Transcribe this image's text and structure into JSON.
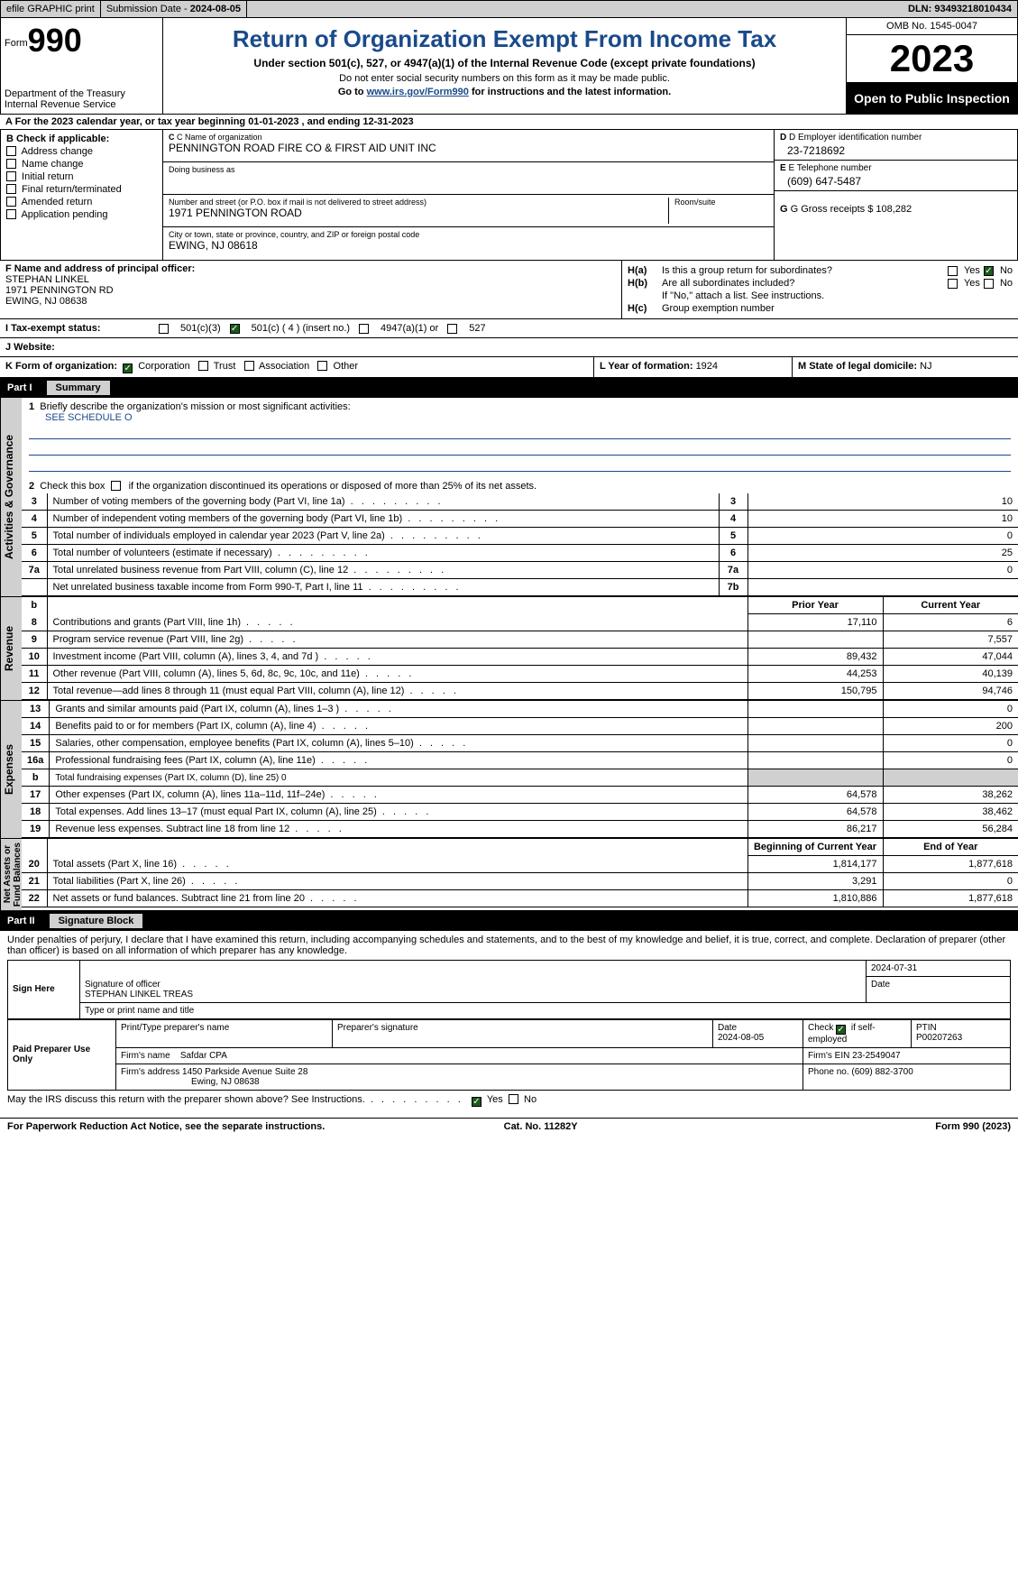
{
  "top": {
    "efile": "efile GRAPHIC print",
    "sub_label": "Submission Date - ",
    "sub_date": "2024-08-05",
    "dln_label": "DLN: ",
    "dln": "93493218010434"
  },
  "header": {
    "form_label": "Form",
    "form_num": "990",
    "dept": "Department of the Treasury\nInternal Revenue Service",
    "title": "Return of Organization Exempt From Income Tax",
    "sub": "Under section 501(c), 527, or 4947(a)(1) of the Internal Revenue Code (except private foundations)",
    "note1": "Do not enter social security numbers on this form as it may be made public.",
    "note2_a": "Go to ",
    "note2_link": "www.irs.gov/Form990",
    "note2_b": " for instructions and the latest information.",
    "omb": "OMB No. 1545-0047",
    "year": "2023",
    "open": "Open to Public Inspection"
  },
  "line_a": "A For the 2023 calendar year, or tax year beginning 01-01-2023   , and ending 12-31-2023",
  "col_b": {
    "hdr": "B Check if applicable:",
    "opts": [
      "Address change",
      "Name change",
      "Initial return",
      "Final return/terminated",
      "Amended return",
      "Application pending"
    ]
  },
  "col_c": {
    "name_lbl": "C Name of organization",
    "name": "PENNINGTON ROAD FIRE CO & FIRST AID UNIT INC",
    "dba_lbl": "Doing business as",
    "street_lbl": "Number and street (or P.O. box if mail is not delivered to street address)",
    "street": "1971 PENNINGTON ROAD",
    "room_lbl": "Room/suite",
    "city_lbl": "City or town, state or province, country, and ZIP or foreign postal code",
    "city": "EWING, NJ  08618"
  },
  "col_de": {
    "d_lbl": "D Employer identification number",
    "d_val": "23-7218692",
    "e_lbl": "E Telephone number",
    "e_val": "(609) 647-5487",
    "g_lbl": "G Gross receipts $ ",
    "g_val": "108,282"
  },
  "f": {
    "lbl": "F  Name and address of principal officer:",
    "name": "STEPHAN LINKEL",
    "addr1": "1971 PENNINGTON RD",
    "addr2": "EWING, NJ  08638"
  },
  "h": {
    "a": "H(a)  Is this a group return for subordinates?",
    "b": "H(b)  Are all subordinates included?",
    "b2": "If \"No,\" attach a list. See instructions.",
    "c": "H(c)  Group exemption number ",
    "yes": "Yes",
    "no": "No"
  },
  "i": {
    "lbl": "I   Tax-exempt status:",
    "o1": "501(c)(3)",
    "o2": "501(c) ( 4 ) (insert no.)",
    "o3": "4947(a)(1) or",
    "o4": "527"
  },
  "j": {
    "lbl": "J   Website: "
  },
  "k": {
    "lbl": "K Form of organization:",
    "o1": "Corporation",
    "o2": "Trust",
    "o3": "Association",
    "o4": "Other",
    "l": "L Year of formation: ",
    "l_val": "1924",
    "m": "M State of legal domicile: ",
    "m_val": "NJ"
  },
  "part1": {
    "n": "Part I",
    "t": "Summary"
  },
  "p1": {
    "l1": "Briefly describe the organization's mission or most significant activities:",
    "l1_val": "SEE SCHEDULE O",
    "l2": "Check this box      if the organization discontinued its operations or disposed of more than 25% of its net assets.",
    "rows_single": [
      {
        "n": "3",
        "d": "Number of voting members of the governing body (Part VI, line 1a)",
        "ln": "3",
        "v": "10"
      },
      {
        "n": "4",
        "d": "Number of independent voting members of the governing body (Part VI, line 1b)",
        "ln": "4",
        "v": "10"
      },
      {
        "n": "5",
        "d": "Total number of individuals employed in calendar year 2023 (Part V, line 2a)",
        "ln": "5",
        "v": "0"
      },
      {
        "n": "6",
        "d": "Total number of volunteers (estimate if necessary)",
        "ln": "6",
        "v": "25"
      },
      {
        "n": "7a",
        "d": "Total unrelated business revenue from Part VIII, column (C), line 12",
        "ln": "7a",
        "v": "0"
      },
      {
        "n": "",
        "d": "Net unrelated business taxable income from Form 990-T, Part I, line 11",
        "ln": "7b",
        "v": ""
      }
    ],
    "hdr_prior": "Prior Year",
    "hdr_curr": "Current Year",
    "rev": [
      {
        "n": "8",
        "d": "Contributions and grants (Part VIII, line 1h)",
        "p": "17,110",
        "c": "6"
      },
      {
        "n": "9",
        "d": "Program service revenue (Part VIII, line 2g)",
        "p": "",
        "c": "7,557"
      },
      {
        "n": "10",
        "d": "Investment income (Part VIII, column (A), lines 3, 4, and 7d )",
        "p": "89,432",
        "c": "47,044"
      },
      {
        "n": "11",
        "d": "Other revenue (Part VIII, column (A), lines 5, 6d, 8c, 9c, 10c, and 11e)",
        "p": "44,253",
        "c": "40,139"
      },
      {
        "n": "12",
        "d": "Total revenue—add lines 8 through 11 (must equal Part VIII, column (A), line 12)",
        "p": "150,795",
        "c": "94,746"
      }
    ],
    "exp": [
      {
        "n": "13",
        "d": "Grants and similar amounts paid (Part IX, column (A), lines 1–3 )",
        "p": "",
        "c": "0"
      },
      {
        "n": "14",
        "d": "Benefits paid to or for members (Part IX, column (A), line 4)",
        "p": "",
        "c": "200"
      },
      {
        "n": "15",
        "d": "Salaries, other compensation, employee benefits (Part IX, column (A), lines 5–10)",
        "p": "",
        "c": "0"
      },
      {
        "n": "16a",
        "d": "Professional fundraising fees (Part IX, column (A), line 11e)",
        "p": "",
        "c": "0"
      },
      {
        "n": "b",
        "d": "Total fundraising expenses (Part IX, column (D), line 25) 0",
        "p": "shade",
        "c": "shade",
        "small": true
      },
      {
        "n": "17",
        "d": "Other expenses (Part IX, column (A), lines 11a–11d, 11f–24e)",
        "p": "64,578",
        "c": "38,262"
      },
      {
        "n": "18",
        "d": "Total expenses. Add lines 13–17 (must equal Part IX, column (A), line 25)",
        "p": "64,578",
        "c": "38,462"
      },
      {
        "n": "19",
        "d": "Revenue less expenses. Subtract line 18 from line 12",
        "p": "86,217",
        "c": "56,284"
      }
    ],
    "na_hdr_b": "Beginning of Current Year",
    "na_hdr_e": "End of Year",
    "na": [
      {
        "n": "20",
        "d": "Total assets (Part X, line 16)",
        "p": "1,814,177",
        "c": "1,877,618"
      },
      {
        "n": "21",
        "d": "Total liabilities (Part X, line 26)",
        "p": "3,291",
        "c": "0"
      },
      {
        "n": "22",
        "d": "Net assets or fund balances. Subtract line 21 from line 20",
        "p": "1,810,886",
        "c": "1,877,618"
      }
    ]
  },
  "vtabs": {
    "ag": "Activities & Governance",
    "rev": "Revenue",
    "exp": "Expenses",
    "na": "Net Assets or\nFund Balances"
  },
  "part2": {
    "n": "Part II",
    "t": "Signature Block"
  },
  "sig": {
    "decl": "Under penalties of perjury, I declare that I have examined this return, including accompanying schedules and statements, and to the best of my knowledge and belief, it is true, correct, and complete. Declaration of preparer (other than officer) is based on all information of which preparer has any knowledge.",
    "sign_here": "Sign Here",
    "sig_lbl": "Signature of officer",
    "date_lbl": "Date",
    "date_val": "2024-07-31",
    "name_lbl": "Type or print name and title",
    "name_val": "STEPHAN LINKEL TREAS",
    "paid": "Paid Preparer Use Only",
    "p_name_lbl": "Print/Type preparer's name",
    "p_sig_lbl": "Preparer's signature",
    "p_date_lbl": "Date",
    "p_date": "2024-08-05",
    "p_self": "Check        if self-employed",
    "ptin_lbl": "PTIN",
    "ptin": "P00207263",
    "firm_lbl": "Firm's name   ",
    "firm": "Safdar CPA",
    "fein_lbl": "Firm's EIN  ",
    "fein": "23-2549047",
    "faddr_lbl": "Firm's address ",
    "faddr1": "1450 Parkside Avenue Suite 28",
    "faddr2": "Ewing, NJ  08638",
    "phone_lbl": "Phone no. ",
    "phone": "(609) 882-3700",
    "discuss": "May the IRS discuss this return with the preparer shown above? See Instructions."
  },
  "bottom": {
    "l": "For Paperwork Reduction Act Notice, see the separate instructions.",
    "m": "Cat. No. 11282Y",
    "r": "Form 990 (2023)"
  }
}
